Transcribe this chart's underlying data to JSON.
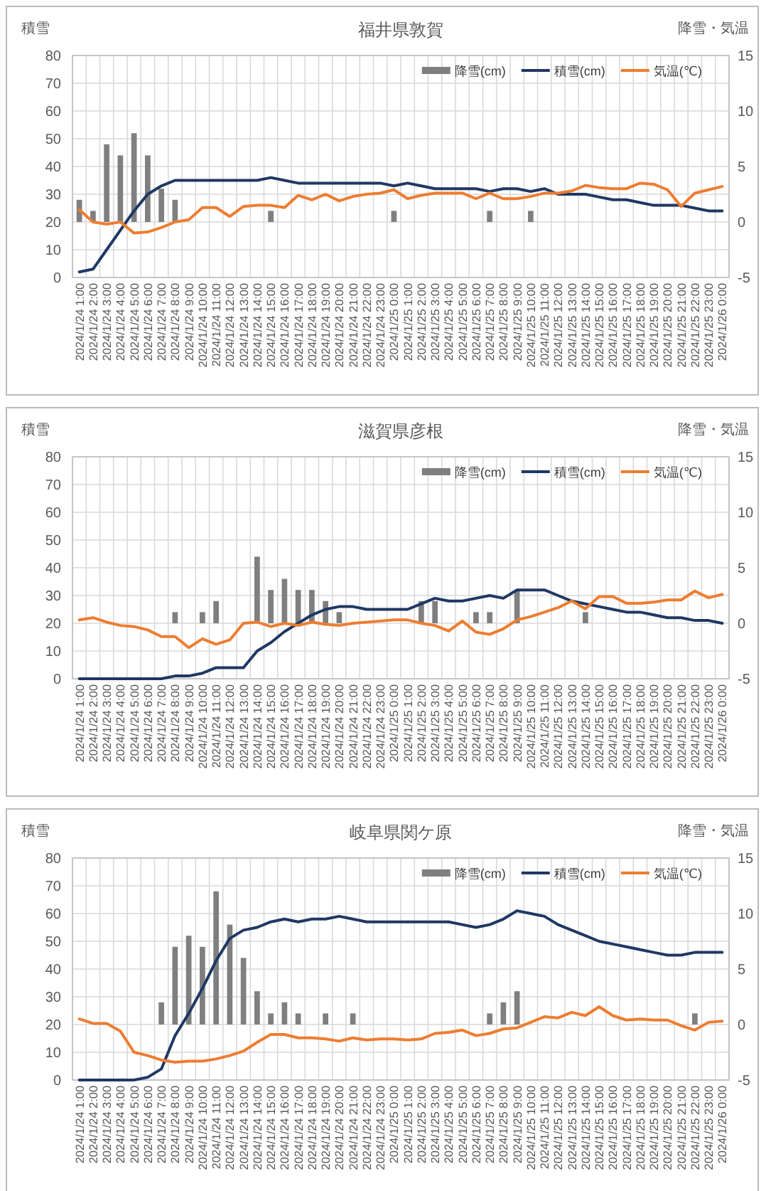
{
  "chart_data": [
    {
      "type": "bar",
      "title": "福井県敦賀",
      "ylabel": "積雪",
      "y2label": "降雪・気温",
      "categories": [
        "2024/1/24 1:00",
        "2024/1/24 2:00",
        "2024/1/24 3:00",
        "2024/1/24 4:00",
        "2024/1/24 5:00",
        "2024/1/24 6:00",
        "2024/1/24 7:00",
        "2024/1/24 8:00",
        "2024/1/24 9:00",
        "2024/1/24 10:00",
        "2024/1/24 11:00",
        "2024/1/24 12:00",
        "2024/1/24 13:00",
        "2024/1/24 14:00",
        "2024/1/24 15:00",
        "2024/1/24 16:00",
        "2024/1/24 17:00",
        "2024/1/24 18:00",
        "2024/1/24 19:00",
        "2024/1/24 20:00",
        "2024/1/24 21:00",
        "2024/1/24 22:00",
        "2024/1/24 23:00",
        "2024/1/25 0:00",
        "2024/1/25 1:00",
        "2024/1/25 2:00",
        "2024/1/25 3:00",
        "2024/1/25 4:00",
        "2024/1/25 5:00",
        "2024/1/25 6:00",
        "2024/1/25 7:00",
        "2024/1/25 8:00",
        "2024/1/25 9:00",
        "2024/1/25 10:00",
        "2024/1/25 11:00",
        "2024/1/25 12:00",
        "2024/1/25 13:00",
        "2024/1/25 14:00",
        "2024/1/25 15:00",
        "2024/1/25 16:00",
        "2024/1/25 17:00",
        "2024/1/25 18:00",
        "2024/1/25 19:00",
        "2024/1/25 20:00",
        "2024/1/25 21:00",
        "2024/1/25 22:00",
        "2024/1/25 23:00",
        "2024/1/26 0:00"
      ],
      "series": [
        {
          "name": "降雪(cm)",
          "axis": "y2",
          "color": "#7f7f7f",
          "values": [
            2,
            1,
            7,
            6,
            8,
            6,
            3,
            2,
            null,
            null,
            null,
            null,
            null,
            null,
            1,
            null,
            null,
            null,
            null,
            null,
            null,
            null,
            null,
            1,
            null,
            null,
            null,
            null,
            null,
            null,
            1,
            null,
            null,
            1,
            null,
            null,
            null,
            null,
            null,
            null,
            null,
            null,
            null,
            null,
            null,
            null,
            null,
            null
          ]
        },
        {
          "name": "積雪(cm)",
          "type": "line",
          "color": "#1f3864",
          "values": [
            2,
            3,
            10,
            17,
            24,
            30,
            33,
            35,
            35,
            35,
            35,
            35,
            35,
            35,
            36,
            35,
            34,
            34,
            34,
            34,
            34,
            34,
            34,
            33,
            34,
            33,
            32,
            32,
            32,
            32,
            31,
            32,
            32,
            31,
            32,
            30,
            30,
            30,
            29,
            28,
            28,
            27,
            26,
            26,
            26,
            25,
            24,
            24
          ]
        },
        {
          "name": "気温(℃)",
          "type": "line",
          "axis": "y2",
          "color": "#ed7d31",
          "values": [
            1.1,
            0,
            -0.2,
            0,
            -1,
            -0.9,
            -0.5,
            0,
            0.2,
            1.3,
            1.3,
            0.5,
            1.4,
            1.5,
            1.5,
            1.3,
            2.4,
            2,
            2.5,
            1.9,
            2.3,
            2.5,
            2.6,
            2.9,
            2.1,
            2.4,
            2.6,
            2.6,
            2.6,
            2.1,
            2.6,
            2.1,
            2.1,
            2.3,
            2.6,
            2.6,
            2.8,
            3.3,
            3.1,
            3,
            3,
            3.5,
            3.4,
            2.9,
            1.4,
            2.6,
            2.9,
            3.2
          ]
        }
      ],
      "ylim": [
        0,
        80
      ],
      "yticks": [
        0,
        10,
        20,
        30,
        40,
        50,
        60,
        70,
        80
      ],
      "y2lim": [
        -5,
        15
      ],
      "y2ticks": [
        -5,
        0,
        5,
        10,
        15
      ],
      "grid": true,
      "legend": "top right"
    },
    {
      "type": "bar",
      "title": "滋賀県彦根",
      "ylabel": "積雪",
      "y2label": "降雪・気温",
      "categories": [
        "2024/1/24 1:00",
        "2024/1/24 2:00",
        "2024/1/24 3:00",
        "2024/1/24 4:00",
        "2024/1/24 5:00",
        "2024/1/24 6:00",
        "2024/1/24 7:00",
        "2024/1/24 8:00",
        "2024/1/24 9:00",
        "2024/1/24 10:00",
        "2024/1/24 11:00",
        "2024/1/24 12:00",
        "2024/1/24 13:00",
        "2024/1/24 14:00",
        "2024/1/24 15:00",
        "2024/1/24 16:00",
        "2024/1/24 17:00",
        "2024/1/24 18:00",
        "2024/1/24 19:00",
        "2024/1/24 20:00",
        "2024/1/24 21:00",
        "2024/1/24 22:00",
        "2024/1/24 23:00",
        "2024/1/25 0:00",
        "2024/1/25 1:00",
        "2024/1/25 2:00",
        "2024/1/25 3:00",
        "2024/1/25 4:00",
        "2024/1/25 5:00",
        "2024/1/25 6:00",
        "2024/1/25 7:00",
        "2024/1/25 8:00",
        "2024/1/25 9:00",
        "2024/1/25 10:00",
        "2024/1/25 11:00",
        "2024/1/25 12:00",
        "2024/1/25 13:00",
        "2024/1/25 14:00",
        "2024/1/25 15:00",
        "2024/1/25 16:00",
        "2024/1/25 17:00",
        "2024/1/25 18:00",
        "2024/1/25 19:00",
        "2024/1/25 20:00",
        "2024/1/25 21:00",
        "2024/1/25 22:00",
        "2024/1/25 23:00",
        "2024/1/26 0:00"
      ],
      "series": [
        {
          "name": "降雪(cm)",
          "axis": "y2",
          "color": "#7f7f7f",
          "values": [
            null,
            null,
            null,
            null,
            null,
            null,
            null,
            1,
            null,
            1,
            2,
            null,
            null,
            6,
            3,
            4,
            3,
            3,
            2,
            1,
            null,
            null,
            null,
            null,
            null,
            2,
            2,
            null,
            null,
            1,
            1,
            null,
            3,
            null,
            null,
            null,
            null,
            1,
            null,
            null,
            null,
            null,
            null,
            null,
            null,
            null,
            null,
            null
          ]
        },
        {
          "name": "積雪(cm)",
          "type": "line",
          "color": "#1f3864",
          "values": [
            0,
            0,
            0,
            0,
            0,
            0,
            0,
            1,
            1,
            2,
            4,
            4,
            4,
            10,
            13,
            17,
            20,
            23,
            25,
            26,
            26,
            25,
            25,
            25,
            25,
            27,
            29,
            28,
            28,
            29,
            30,
            29,
            32,
            32,
            32,
            30,
            28,
            27,
            26,
            25,
            24,
            24,
            23,
            22,
            22,
            21,
            21,
            20
          ]
        },
        {
          "name": "気温(℃)",
          "type": "line",
          "axis": "y2",
          "color": "#ed7d31",
          "values": [
            0.3,
            0.5,
            0.1,
            -0.2,
            -0.3,
            -0.6,
            -1.2,
            -1.2,
            -2.2,
            -1.4,
            -1.9,
            -1.5,
            0,
            0.1,
            -0.3,
            0,
            -0.2,
            0.1,
            -0.1,
            -0.2,
            0,
            0.1,
            0.2,
            0.3,
            0.3,
            0,
            -0.2,
            -0.7,
            0.2,
            -0.8,
            -1,
            -0.5,
            0.3,
            0.6,
            1,
            1.4,
            2,
            1.3,
            2.4,
            2.4,
            1.8,
            1.8,
            1.9,
            2.1,
            2.1,
            2.9,
            2.3,
            2.6
          ]
        }
      ],
      "ylim": [
        0,
        80
      ],
      "yticks": [
        0,
        10,
        20,
        30,
        40,
        50,
        60,
        70,
        80
      ],
      "y2lim": [
        -5,
        15
      ],
      "y2ticks": [
        -5,
        0,
        5,
        10,
        15
      ],
      "grid": true,
      "legend": "top right"
    },
    {
      "type": "bar",
      "title": "岐阜県関ケ原",
      "ylabel": "積雪",
      "y2label": "降雪・気温",
      "categories": [
        "2024/1/24 1:00",
        "2024/1/24 2:00",
        "2024/1/24 3:00",
        "2024/1/24 4:00",
        "2024/1/24 5:00",
        "2024/1/24 6:00",
        "2024/1/24 7:00",
        "2024/1/24 8:00",
        "2024/1/24 9:00",
        "2024/1/24 10:00",
        "2024/1/24 11:00",
        "2024/1/24 12:00",
        "2024/1/24 13:00",
        "2024/1/24 14:00",
        "2024/1/24 15:00",
        "2024/1/24 16:00",
        "2024/1/24 17:00",
        "2024/1/24 18:00",
        "2024/1/24 19:00",
        "2024/1/24 20:00",
        "2024/1/24 21:00",
        "2024/1/24 22:00",
        "2024/1/24 23:00",
        "2024/1/25 0:00",
        "2024/1/25 1:00",
        "2024/1/25 2:00",
        "2024/1/25 3:00",
        "2024/1/25 4:00",
        "2024/1/25 5:00",
        "2024/1/25 6:00",
        "2024/1/25 7:00",
        "2024/1/25 8:00",
        "2024/1/25 9:00",
        "2024/1/25 10:00",
        "2024/1/25 11:00",
        "2024/1/25 12:00",
        "2024/1/25 13:00",
        "2024/1/25 14:00",
        "2024/1/25 15:00",
        "2024/1/25 16:00",
        "2024/1/25 17:00",
        "2024/1/25 18:00",
        "2024/1/25 19:00",
        "2024/1/25 20:00",
        "2024/1/25 21:00",
        "2024/1/25 22:00",
        "2024/1/25 23:00",
        "2024/1/26 0:00"
      ],
      "series": [
        {
          "name": "降雪(cm)",
          "axis": "y2",
          "color": "#7f7f7f",
          "values": [
            null,
            null,
            null,
            null,
            null,
            null,
            2,
            7,
            8,
            7,
            12,
            9,
            6,
            3,
            1,
            2,
            1,
            null,
            1,
            null,
            1,
            null,
            null,
            null,
            null,
            null,
            null,
            null,
            null,
            null,
            1,
            2,
            3,
            null,
            null,
            null,
            null,
            null,
            null,
            null,
            null,
            null,
            null,
            null,
            null,
            1,
            null,
            null
          ]
        },
        {
          "name": "積雪(cm)",
          "type": "line",
          "color": "#1f3864",
          "values": [
            0,
            0,
            0,
            0,
            0,
            1,
            4,
            16,
            24,
            33,
            43,
            51,
            54,
            55,
            57,
            58,
            57,
            58,
            58,
            59,
            58,
            57,
            57,
            57,
            57,
            57,
            57,
            57,
            56,
            55,
            56,
            58,
            61,
            60,
            59,
            56,
            54,
            52,
            50,
            49,
            48,
            47,
            46,
            45,
            45,
            46,
            46,
            46
          ]
        },
        {
          "name": "気温(℃)",
          "type": "line",
          "axis": "y2",
          "color": "#ed7d31",
          "values": [
            0.5,
            0.1,
            0.1,
            -0.6,
            -2.5,
            -2.8,
            -3.2,
            -3.4,
            -3.3,
            -3.3,
            -3.1,
            -2.8,
            -2.4,
            -1.6,
            -0.9,
            -0.9,
            -1.2,
            -1.2,
            -1.3,
            -1.5,
            -1.2,
            -1.4,
            -1.3,
            -1.3,
            -1.4,
            -1.3,
            -0.8,
            -0.7,
            -0.5,
            -1,
            -0.8,
            -0.4,
            -0.3,
            0.2,
            0.7,
            0.6,
            1.1,
            0.8,
            1.6,
            0.8,
            0.4,
            0.5,
            0.4,
            0.4,
            -0.1,
            -0.5,
            0.2,
            0.3
          ]
        }
      ],
      "ylim": [
        0,
        80
      ],
      "yticks": [
        0,
        10,
        20,
        30,
        40,
        50,
        60,
        70,
        80
      ],
      "y2lim": [
        -5,
        15
      ],
      "y2ticks": [
        -5,
        0,
        5,
        10,
        15
      ],
      "grid": true,
      "legend": "top right"
    }
  ]
}
